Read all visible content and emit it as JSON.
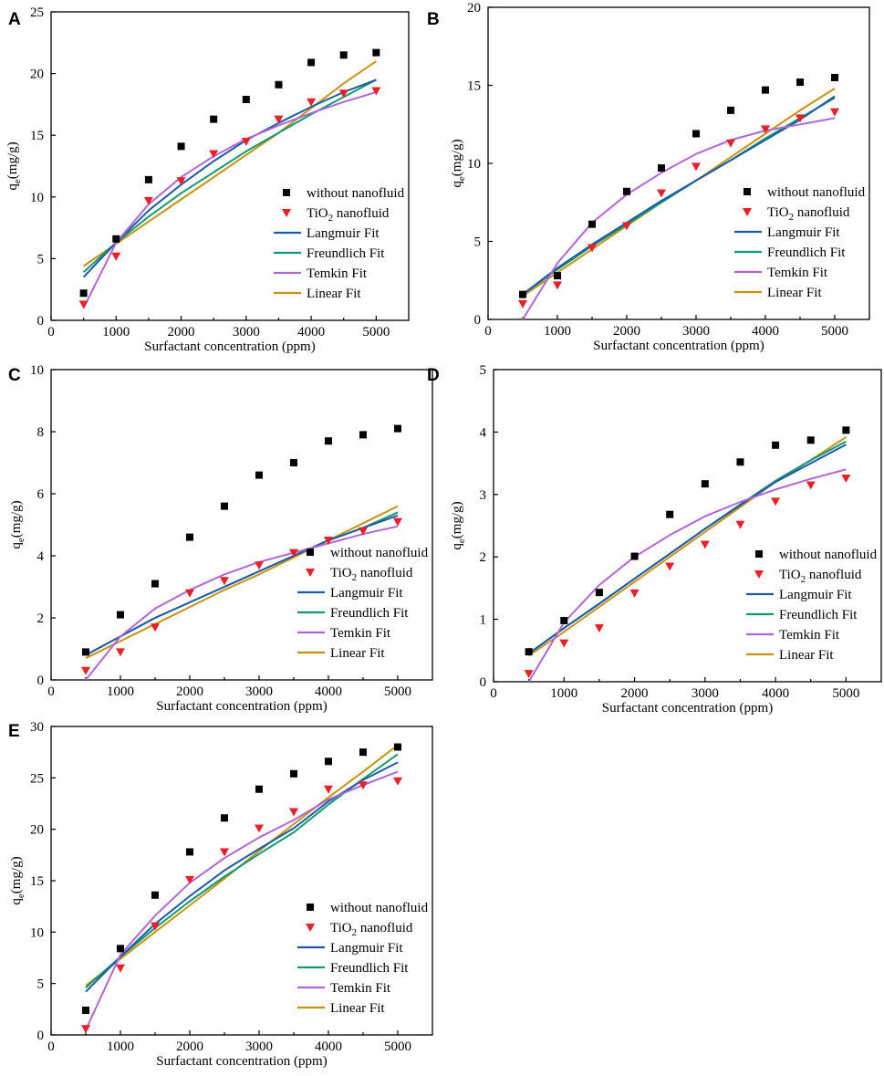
{
  "colors": {
    "without": "#000000",
    "tio2": "#e8202a",
    "langmuir": "#1f5aa8",
    "freundlich": "#119a70",
    "temkin": "#b066d6",
    "linear": "#c79211"
  },
  "legend_labels": {
    "without": "without nanofluid",
    "tio2_main": "TiO",
    "tio2_sub": "2",
    "tio2_rest": " nanofluid",
    "langmuir": "Langmuir Fit",
    "freundlich": "Freundlich Fit",
    "temkin": "Temkin Fit",
    "linear": "Linear Fit"
  },
  "chart_data": [
    {
      "panel": "A",
      "type": "scatter",
      "xlabel": "Surfactant concentration (ppm)",
      "ylabel_main": "q",
      "ylabel_sub": "e",
      "ylabel_rest": "(mg/g)",
      "xlim": [
        0,
        5500
      ],
      "ylim": [
        0,
        25
      ],
      "xticks": [
        0,
        1000,
        2000,
        3000,
        4000,
        5000
      ],
      "yticks": [
        0,
        5,
        10,
        15,
        20,
        25
      ],
      "legend_position": "lower-right",
      "x": [
        500,
        1000,
        1500,
        2000,
        2500,
        3000,
        3500,
        4000,
        4500,
        5000
      ],
      "without": [
        2.2,
        6.6,
        11.4,
        14.1,
        16.3,
        17.9,
        19.1,
        20.9,
        21.5,
        21.7
      ],
      "tio2": [
        1.3,
        5.2,
        9.7,
        11.3,
        13.5,
        14.5,
        16.3,
        17.7,
        18.4,
        18.6
      ],
      "fits": {
        "langmuir": [
          3.5,
          6.3,
          8.9,
          11.0,
          12.9,
          14.6,
          16.0,
          17.3,
          18.5,
          19.5
        ],
        "freundlich": [
          3.9,
          6.3,
          8.4,
          10.3,
          12.0,
          13.7,
          15.2,
          16.7,
          18.1,
          19.5
        ],
        "temkin": [
          1.0,
          6.3,
          9.4,
          11.6,
          13.3,
          14.7,
          15.8,
          16.8,
          17.7,
          18.5
        ],
        "linear": [
          4.4,
          6.2,
          8.0,
          9.8,
          11.6,
          13.4,
          15.2,
          17.2,
          19.2,
          21.0
        ]
      }
    },
    {
      "panel": "B",
      "type": "scatter",
      "xlabel": "Surfactant concentration (ppm)",
      "ylabel_main": "q",
      "ylabel_sub": "e",
      "ylabel_rest": "(mg/g)",
      "xlim": [
        0,
        5500
      ],
      "ylim": [
        0,
        20
      ],
      "xticks": [
        0,
        1000,
        2000,
        3000,
        4000,
        5000
      ],
      "yticks": [
        0,
        5,
        10,
        15,
        20
      ],
      "legend_position": "lower-right",
      "x": [
        500,
        1000,
        1500,
        2000,
        2500,
        3000,
        3500,
        4000,
        4500,
        5000
      ],
      "without": [
        1.6,
        2.8,
        6.1,
        8.2,
        9.7,
        11.9,
        13.4,
        14.7,
        15.2,
        15.5
      ],
      "tio2": [
        1.0,
        2.2,
        4.6,
        6.0,
        8.1,
        9.8,
        11.3,
        12.2,
        12.9,
        13.3
      ],
      "fits": {
        "langmuir": [
          1.6,
          3.3,
          4.8,
          6.2,
          7.6,
          8.9,
          10.2,
          11.5,
          12.8,
          14.3
        ],
        "freundlich": [
          1.6,
          3.2,
          4.7,
          6.1,
          7.5,
          8.9,
          10.2,
          11.6,
          12.9,
          14.2
        ],
        "temkin": [
          0.0,
          3.6,
          6.2,
          8.0,
          9.4,
          10.6,
          11.5,
          12.1,
          12.5,
          12.9
        ],
        "linear": [
          1.5,
          3.0,
          4.5,
          6.0,
          7.5,
          8.9,
          10.4,
          11.9,
          13.4,
          14.8
        ]
      }
    },
    {
      "panel": "C",
      "type": "scatter",
      "xlabel": "Surfactant concentration (ppm)",
      "ylabel_main": "q",
      "ylabel_sub": "e",
      "ylabel_rest": "(mg/g)",
      "xlim": [
        0,
        5500
      ],
      "ylim": [
        0,
        10
      ],
      "xticks": [
        0,
        1000,
        2000,
        3000,
        4000,
        5000
      ],
      "yticks": [
        0,
        2,
        4,
        6,
        8,
        10
      ],
      "legend_position": "lower-right",
      "x": [
        500,
        1000,
        1500,
        2000,
        2500,
        3000,
        3500,
        4000,
        4500,
        5000
      ],
      "without": [
        0.9,
        2.1,
        3.1,
        4.6,
        5.6,
        6.6,
        7.0,
        7.7,
        7.9,
        8.1
      ],
      "tio2": [
        0.3,
        0.9,
        1.7,
        2.8,
        3.2,
        3.7,
        4.1,
        4.5,
        4.8,
        5.1
      ],
      "fits": {
        "langmuir": [
          0.8,
          1.4,
          2.0,
          2.5,
          3.0,
          3.5,
          4.0,
          4.5,
          4.9,
          5.3
        ],
        "freundlich": [
          0.8,
          1.4,
          2.0,
          2.5,
          3.0,
          3.5,
          4.0,
          4.5,
          4.9,
          5.4
        ],
        "temkin": [
          0.0,
          1.4,
          2.3,
          2.9,
          3.4,
          3.8,
          4.1,
          4.4,
          4.7,
          4.95
        ],
        "linear": [
          0.7,
          1.25,
          1.8,
          2.35,
          2.9,
          3.4,
          3.95,
          4.5,
          5.05,
          5.6
        ]
      }
    },
    {
      "panel": "D",
      "type": "scatter",
      "xlabel": "Surfactant concentration (ppm)",
      "ylabel_main": "q",
      "ylabel_sub": "e",
      "ylabel_rest": "(mg/g)",
      "xlim": [
        0,
        5500
      ],
      "ylim": [
        0,
        5
      ],
      "xticks": [
        0,
        1000,
        2000,
        3000,
        4000,
        5000
      ],
      "yticks": [
        0,
        1,
        2,
        3,
        4,
        5
      ],
      "legend_position": "lower-right",
      "x": [
        500,
        1000,
        1500,
        2000,
        2500,
        3000,
        3500,
        4000,
        4500,
        5000
      ],
      "without": [
        0.48,
        0.98,
        1.43,
        2.01,
        2.68,
        3.17,
        3.52,
        3.79,
        3.87,
        4.03
      ],
      "tio2": [
        0.13,
        0.62,
        0.86,
        1.42,
        1.85,
        2.2,
        2.52,
        2.89,
        3.15,
        3.26
      ],
      "fits": {
        "langmuir": [
          0.45,
          0.86,
          1.25,
          1.65,
          2.05,
          2.45,
          2.83,
          3.2,
          3.5,
          3.8
        ],
        "freundlich": [
          0.45,
          0.86,
          1.25,
          1.65,
          2.05,
          2.45,
          2.84,
          3.22,
          3.55,
          3.85
        ],
        "temkin": [
          0.0,
          0.95,
          1.55,
          2.0,
          2.35,
          2.65,
          2.88,
          3.08,
          3.25,
          3.4
        ],
        "linear": [
          0.42,
          0.8,
          1.2,
          1.6,
          2.0,
          2.4,
          2.8,
          3.2,
          3.55,
          3.92
        ]
      }
    },
    {
      "panel": "E",
      "type": "scatter",
      "xlabel": "Surfactant concentration (ppm)",
      "ylabel_main": "q",
      "ylabel_sub": "e",
      "ylabel_rest": "(mg/g)",
      "xlim": [
        0,
        5500
      ],
      "ylim": [
        0,
        30
      ],
      "xticks": [
        0,
        1000,
        2000,
        3000,
        4000,
        5000
      ],
      "yticks": [
        0,
        5,
        10,
        15,
        20,
        25,
        30
      ],
      "legend_position": "lower-right",
      "x": [
        500,
        1000,
        1500,
        2000,
        2500,
        3000,
        3500,
        4000,
        4500,
        5000
      ],
      "without": [
        2.4,
        8.4,
        13.6,
        17.8,
        21.1,
        23.9,
        25.4,
        26.6,
        27.5,
        28.0
      ],
      "tio2": [
        0.6,
        6.5,
        10.6,
        15.1,
        17.8,
        20.1,
        21.7,
        23.9,
        24.3,
        24.7
      ],
      "fits": {
        "langmuir": [
          4.2,
          7.6,
          10.8,
          13.5,
          16.0,
          18.1,
          20.1,
          22.7,
          24.8,
          26.5
        ],
        "freundlich": [
          4.6,
          7.6,
          10.4,
          13.0,
          15.4,
          17.6,
          19.7,
          22.4,
          24.9,
          27.3
        ],
        "temkin": [
          0.5,
          7.8,
          11.6,
          14.8,
          17.2,
          19.2,
          20.9,
          22.9,
          24.3,
          25.6
        ],
        "linear": [
          4.8,
          7.4,
          10.0,
          12.6,
          15.2,
          17.9,
          20.5,
          23.1,
          25.6,
          28.2
        ]
      }
    }
  ]
}
